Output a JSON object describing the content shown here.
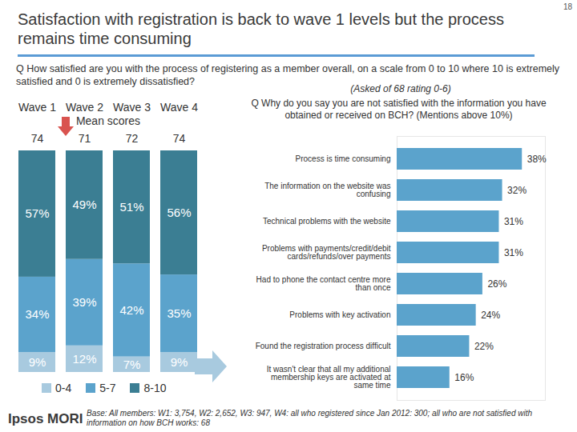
{
  "page": {
    "title": "Satisfaction with registration is back to wave 1 levels but the process remains time consuming",
    "page_number": 18,
    "footnote": "Base: All members: W1: 3,754, W2: 2,652, W3: 947, W4: all who registered since Jan 2012: 300; all who are not satisfied with information on how BCH works: 68",
    "logo": "Ipsos MORI"
  },
  "chart_data": [
    {
      "type": "bar",
      "title": "Q How satisfied are you with the process of registering as a member overall, on a scale from 0 to 10 where 10 is extremely satisfied and 0 is extremely dissatisfied?",
      "categories": [
        "Wave 1",
        "Wave 2",
        "Wave 3",
        "Wave 4"
      ],
      "series": [
        {
          "name": "0-4",
          "color": "#a8cadf",
          "values": [
            9,
            12,
            7,
            9
          ],
          "value_labels": [
            "9%",
            "12%",
            "7%",
            "9%"
          ]
        },
        {
          "name": "5-7",
          "color": "#5ba3cc",
          "values": [
            34,
            39,
            42,
            35
          ],
          "value_labels": [
            "34%",
            "39%",
            "42%",
            "35%"
          ]
        },
        {
          "name": "8-10",
          "color": "#3b7e93",
          "values": [
            57,
            49,
            51,
            56
          ],
          "value_labels": [
            "57%",
            "49%",
            "51%",
            "56%"
          ]
        }
      ],
      "mean_scores": {
        "label": "Mean scores",
        "values": [
          74,
          71,
          72,
          74
        ]
      },
      "stacked": true,
      "data_labels": true,
      "ylim": [
        0,
        100
      ],
      "tick_labels": false,
      "legend": "bottom"
    },
    {
      "type": "bar",
      "orientation": "horizontal",
      "subtitle": "(Asked of 68 rating 0-6)",
      "title": "Q Why do you say you are not satisfied with the information you have obtained or received on BCH?  (Mentions above 10%)",
      "categories": [
        "Process is time consuming",
        "The information on the website was confusing",
        "Technical problems with the website",
        "Problems with payments/credit/debit cards/refunds/over payments",
        "Had to phone the contact centre more than once",
        "Problems with key activation",
        "Found the registration process difficult",
        "It wasn't clear that all my additional membership keys are activated at same time"
      ],
      "values": [
        38,
        32,
        31,
        31,
        26,
        24,
        22,
        16
      ],
      "value_labels": [
        "38%",
        "32%",
        "31%",
        "31%",
        "26%",
        "24%",
        "22%",
        "16%"
      ],
      "color": "#5ba3cc",
      "xlim": [
        0,
        45
      ],
      "data_labels": true,
      "tick_labels": "y"
    }
  ]
}
